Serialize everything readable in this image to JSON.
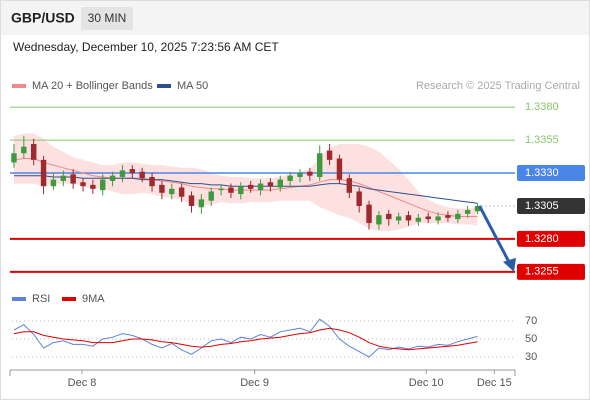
{
  "header": {
    "symbol": "GBP/USD",
    "timeframe": "30 MIN",
    "datetime": "Wednesday, December 10, 2025 7:23:56 AM CET"
  },
  "chart_data": [
    {
      "type": "candlestick",
      "source": "Research © 2025 Trading Central",
      "xlim": [
        -0.2,
        50.8
      ],
      "ylim": [
        1.3245,
        1.3412
      ],
      "up_color": "#3f9a3f",
      "down_color": "#9c2a2e",
      "open": [
        1.3338,
        1.3345,
        1.3352,
        1.334,
        1.332,
        1.3324,
        1.3329,
        1.3323,
        1.3321,
        1.3317,
        1.3324,
        1.3327,
        1.3333,
        1.3331,
        1.3327,
        1.3321,
        1.3314,
        1.3319,
        1.3313,
        1.3304,
        1.3309,
        1.3317,
        1.3319,
        1.3314,
        1.3321,
        1.3317,
        1.3323,
        1.3319,
        1.3324,
        1.3327,
        1.3331,
        1.3327,
        1.3347,
        1.3341,
        1.3326,
        1.3316,
        1.3306,
        1.3291,
        1.3299,
        1.3294,
        1.3298,
        1.3293,
        1.3297,
        1.3294,
        1.3298,
        1.3295,
        1.3299,
        1.3301
      ],
      "high": [
        1.3352,
        1.3358,
        1.3356,
        1.3343,
        1.333,
        1.3332,
        1.3333,
        1.3326,
        1.3325,
        1.3329,
        1.3331,
        1.3336,
        1.3336,
        1.3334,
        1.333,
        1.3324,
        1.3322,
        1.3322,
        1.3316,
        1.3314,
        1.3319,
        1.3321,
        1.3322,
        1.3323,
        1.3324,
        1.3325,
        1.3326,
        1.3328,
        1.3331,
        1.3333,
        1.3334,
        1.3351,
        1.3352,
        1.3344,
        1.3329,
        1.3319,
        1.3309,
        1.3301,
        1.3302,
        1.33,
        1.3301,
        1.3299,
        1.33,
        1.33,
        1.3301,
        1.3302,
        1.3305,
        1.3307
      ],
      "low": [
        1.3334,
        1.3341,
        1.3336,
        1.3314,
        1.3317,
        1.332,
        1.3318,
        1.3316,
        1.3314,
        1.3313,
        1.332,
        1.3323,
        1.3326,
        1.3323,
        1.3316,
        1.331,
        1.331,
        1.3308,
        1.33,
        1.3299,
        1.3305,
        1.3313,
        1.3311,
        1.331,
        1.3315,
        1.3313,
        1.3316,
        1.3316,
        1.332,
        1.3323,
        1.3324,
        1.3324,
        1.3336,
        1.3322,
        1.3311,
        1.33,
        1.3287,
        1.3287,
        1.329,
        1.3291,
        1.329,
        1.329,
        1.3292,
        1.3291,
        1.3293,
        1.3292,
        1.3296,
        1.3299
      ],
      "close": [
        1.3345,
        1.335,
        1.334,
        1.332,
        1.3325,
        1.3328,
        1.3322,
        1.332,
        1.3318,
        1.3325,
        1.3328,
        1.3332,
        1.333,
        1.3326,
        1.332,
        1.3315,
        1.3318,
        1.3312,
        1.3305,
        1.331,
        1.3316,
        1.3318,
        1.3315,
        1.332,
        1.3318,
        1.3322,
        1.332,
        1.3325,
        1.3328,
        1.333,
        1.3328,
        1.3345,
        1.334,
        1.3325,
        1.3315,
        1.3305,
        1.3292,
        1.3298,
        1.3295,
        1.3297,
        1.3294,
        1.3296,
        1.3295,
        1.3297,
        1.3296,
        1.3299,
        1.3302,
        1.3305
      ],
      "series": [
        {
          "name": "MA 20 + Bollinger Bands",
          "color": "#f08a8a",
          "band_color": "#fde0e0",
          "values": [
            1.334,
            1.3341,
            1.3341,
            1.3338,
            1.3336,
            1.3334,
            1.3332,
            1.333,
            1.3328,
            1.3327,
            1.3326,
            1.3326,
            1.3326,
            1.3326,
            1.3325,
            1.3324,
            1.3323,
            1.3322,
            1.332,
            1.3319,
            1.3318,
            1.3318,
            1.3317,
            1.3317,
            1.3317,
            1.3317,
            1.3317,
            1.3318,
            1.3319,
            1.332,
            1.3321,
            1.3323,
            1.3325,
            1.3325,
            1.3324,
            1.3322,
            1.3319,
            1.3316,
            1.3313,
            1.331,
            1.3307,
            1.3304,
            1.3301,
            1.3299,
            1.3298,
            1.3297,
            1.3297,
            1.3297
          ],
          "upper": [
            1.3358,
            1.336,
            1.336,
            1.3356,
            1.335,
            1.3346,
            1.3342,
            1.334,
            1.3338,
            1.3336,
            1.3336,
            1.3338,
            1.3338,
            1.3337,
            1.3336,
            1.3336,
            1.3335,
            1.3334,
            1.3334,
            1.3333,
            1.333,
            1.3328,
            1.3327,
            1.3327,
            1.3326,
            1.3326,
            1.3326,
            1.3327,
            1.3329,
            1.3331,
            1.3333,
            1.3342,
            1.3349,
            1.3352,
            1.3352,
            1.3352,
            1.335,
            1.3346,
            1.334,
            1.3333,
            1.3325,
            1.3316,
            1.331,
            1.3306,
            1.3304,
            1.3303,
            1.3303,
            1.3304
          ],
          "lower": [
            1.3322,
            1.3322,
            1.3322,
            1.332,
            1.3322,
            1.3322,
            1.3322,
            1.332,
            1.3318,
            1.3318,
            1.3316,
            1.3314,
            1.3314,
            1.3315,
            1.3314,
            1.3312,
            1.3311,
            1.331,
            1.3306,
            1.3305,
            1.3306,
            1.3308,
            1.3307,
            1.3307,
            1.3308,
            1.3308,
            1.3308,
            1.3309,
            1.3309,
            1.3309,
            1.3309,
            1.3304,
            1.3301,
            1.3298,
            1.3296,
            1.3292,
            1.3288,
            1.3286,
            1.3286,
            1.3287,
            1.3289,
            1.3292,
            1.3292,
            1.3292,
            1.3292,
            1.3291,
            1.3291,
            1.329
          ]
        },
        {
          "name": "MA 50",
          "color": "#2d4f8e",
          "values": [
            1.3328,
            1.3328,
            1.3328,
            1.3328,
            1.3327,
            1.3327,
            1.3327,
            1.3326,
            1.3326,
            1.3326,
            1.3326,
            1.3326,
            1.3326,
            1.3325,
            1.3325,
            1.3325,
            1.3324,
            1.3323,
            1.3322,
            1.3322,
            1.3321,
            1.3321,
            1.332,
            1.332,
            1.332,
            1.332,
            1.332,
            1.332,
            1.332,
            1.332,
            1.332,
            1.3321,
            1.3322,
            1.3322,
            1.3321,
            1.332,
            1.3318,
            1.3317,
            1.3316,
            1.3315,
            1.3314,
            1.3313,
            1.3312,
            1.3311,
            1.331,
            1.3309,
            1.3308,
            1.3307
          ]
        }
      ],
      "levels": [
        {
          "value": 1.338,
          "label": "1.3380",
          "color": "#8cc46a",
          "line_width": 1,
          "boxed": false,
          "dotted": false
        },
        {
          "value": 1.3355,
          "label": "1.3355",
          "color": "#8cc46a",
          "line_width": 1,
          "boxed": false,
          "dotted": false
        },
        {
          "value": 1.333,
          "label": "1.3330",
          "color": "#4a86e8",
          "line_width": 1.5,
          "boxed": true,
          "dotted": false
        },
        {
          "value": 1.3305,
          "label": "1.3305",
          "color": "#333333",
          "line_width": 1,
          "boxed": true,
          "dotted": true
        },
        {
          "value": 1.328,
          "label": "1.3280",
          "color": "#e00000",
          "line_width": 2,
          "boxed": true,
          "dotted": false
        },
        {
          "value": 1.3255,
          "label": "1.3255",
          "color": "#e00000",
          "line_width": 2,
          "boxed": true,
          "dotted": false
        }
      ],
      "forecast_color": "#2a5ca8"
    },
    {
      "type": "line",
      "xlim": [
        -0.2,
        50.8
      ],
      "ylim": [
        20,
        80
      ],
      "yticks": [
        70,
        50,
        30
      ],
      "xticks": [
        {
          "value": 6.9,
          "label": "Dec 8"
        },
        {
          "value": 24.4,
          "label": "Dec 9"
        },
        {
          "value": 41.8,
          "label": "Dec 10"
        },
        {
          "value": 48.7,
          "label": "Dec 15"
        }
      ],
      "series": [
        {
          "name": "RSI",
          "color": "#5b84d6",
          "values": [
            60,
            66,
            55,
            40,
            46,
            48,
            44,
            44,
            42,
            50,
            52,
            56,
            54,
            50,
            44,
            40,
            45,
            38,
            33,
            40,
            48,
            50,
            46,
            52,
            50,
            55,
            52,
            58,
            60,
            62,
            58,
            72,
            64,
            50,
            42,
            36,
            30,
            40,
            38,
            41,
            39,
            42,
            41,
            44,
            43,
            47,
            50,
            53
          ]
        },
        {
          "name": "9MA",
          "color": "#e00000",
          "values": [
            56,
            58,
            58,
            54,
            52,
            50,
            49,
            48,
            46,
            46,
            46,
            48,
            50,
            50,
            49,
            47,
            46,
            44,
            42,
            41,
            42,
            44,
            45,
            47,
            48,
            50,
            51,
            52,
            54,
            56,
            57,
            60,
            62,
            60,
            57,
            52,
            46,
            42,
            40,
            39,
            38,
            39,
            40,
            41,
            42,
            43,
            45,
            47
          ]
        }
      ]
    }
  ]
}
